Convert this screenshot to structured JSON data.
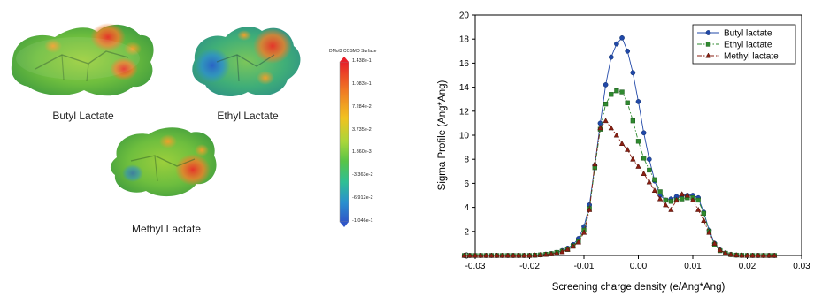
{
  "molecules": [
    {
      "label": "Butyl  Lactate"
    },
    {
      "label": "Ethyl  Lactate"
    },
    {
      "label": "Methyl  Lactate"
    }
  ],
  "colorbar": {
    "title": "DMol3 COSMO Surface",
    "ticks": [
      "1.438e-1",
      "1.083e-1",
      "7.284e-2",
      "3.735e-2",
      "1.860e-3",
      "-3.363e-2",
      "-6.912e-2",
      "-1.046e-1"
    ],
    "colors": [
      "#e8202a",
      "#f07a23",
      "#f1c21f",
      "#a9d63a",
      "#58c447",
      "#2fbf94",
      "#2a8fcf",
      "#2f56c8"
    ]
  },
  "chart_data": {
    "type": "line",
    "xlabel": "Screening charge density (e/Ang*Ang)",
    "ylabel": "Sigma Profile (Ang*Ang)",
    "xlim": [
      -0.03,
      0.03
    ],
    "ylim": [
      0,
      20
    ],
    "xticks": [
      "-0.03",
      "-0.02",
      "-0.01",
      "0.00",
      "0.01",
      "0.02",
      "0.03"
    ],
    "yticks": [
      "0",
      "2",
      "4",
      "6",
      "8",
      "10",
      "12",
      "14",
      "16",
      "18",
      "20"
    ],
    "legend_position": "top-right",
    "grid": false,
    "x": [
      -0.032,
      -0.031,
      -0.03,
      -0.029,
      -0.028,
      -0.027,
      -0.026,
      -0.025,
      -0.024,
      -0.023,
      -0.022,
      -0.021,
      -0.02,
      -0.019,
      -0.018,
      -0.017,
      -0.016,
      -0.015,
      -0.014,
      -0.013,
      -0.012,
      -0.011,
      -0.01,
      -0.009,
      -0.008,
      -0.007,
      -0.006,
      -0.005,
      -0.004,
      -0.003,
      -0.002,
      -0.001,
      0.0,
      0.001,
      0.002,
      0.003,
      0.004,
      0.005,
      0.006,
      0.007,
      0.008,
      0.009,
      0.01,
      0.011,
      0.012,
      0.013,
      0.014,
      0.015,
      0.016,
      0.017,
      0.018,
      0.019,
      0.02,
      0.021,
      0.022,
      0.023,
      0.024,
      0.025
    ],
    "series": [
      {
        "name": "Butyl lactate",
        "color": "#2148a8",
        "marker": "circle",
        "dash": "",
        "values": [
          0,
          0,
          0,
          0,
          0,
          0,
          0,
          0,
          0,
          0,
          0,
          0,
          0,
          0.02,
          0.05,
          0.1,
          0.15,
          0.25,
          0.4,
          0.6,
          0.9,
          1.4,
          2.4,
          4.2,
          7.5,
          11.0,
          14.2,
          16.5,
          17.6,
          18.1,
          17.0,
          15.2,
          12.8,
          10.2,
          8.0,
          6.2,
          5.0,
          4.6,
          4.7,
          4.9,
          5.0,
          5.0,
          5.0,
          4.8,
          3.6,
          2.1,
          1.0,
          0.45,
          0.2,
          0.08,
          0.03,
          0.01,
          0,
          0,
          0,
          0,
          0,
          0
        ]
      },
      {
        "name": "Ethyl lactate",
        "color": "#2f8a2f",
        "marker": "square",
        "dash": "5,2,1.5,2",
        "values": [
          0,
          0,
          0,
          0,
          0,
          0,
          0,
          0,
          0,
          0,
          0,
          0,
          0,
          0.02,
          0.05,
          0.1,
          0.15,
          0.25,
          0.35,
          0.5,
          0.8,
          1.2,
          2.1,
          3.9,
          7.3,
          10.5,
          12.6,
          13.4,
          13.7,
          13.6,
          12.7,
          11.2,
          9.5,
          8.1,
          7.1,
          6.3,
          5.3,
          4.6,
          4.5,
          4.6,
          4.7,
          4.8,
          4.8,
          4.6,
          3.5,
          2.0,
          0.9,
          0.4,
          0.18,
          0.07,
          0.03,
          0.01,
          0,
          0,
          0,
          0,
          0,
          0
        ]
      },
      {
        "name": "Methyl lactate",
        "color": "#8a1f12",
        "marker": "triangle",
        "dash": "5,2,1.5,2,1.5,2",
        "values": [
          0,
          0,
          0,
          0,
          0,
          0,
          0,
          0,
          0,
          0,
          0,
          0,
          0,
          0.02,
          0.05,
          0.08,
          0.12,
          0.2,
          0.3,
          0.5,
          0.75,
          1.1,
          1.9,
          3.8,
          7.6,
          10.6,
          11.2,
          10.6,
          10.0,
          9.3,
          8.8,
          8.0,
          7.4,
          6.8,
          6.1,
          5.4,
          4.7,
          4.2,
          3.8,
          4.6,
          5.1,
          5.0,
          4.6,
          3.8,
          2.9,
          1.9,
          1.0,
          0.45,
          0.2,
          0.08,
          0.03,
          0.01,
          0,
          0,
          0,
          0,
          0,
          0
        ]
      }
    ]
  }
}
